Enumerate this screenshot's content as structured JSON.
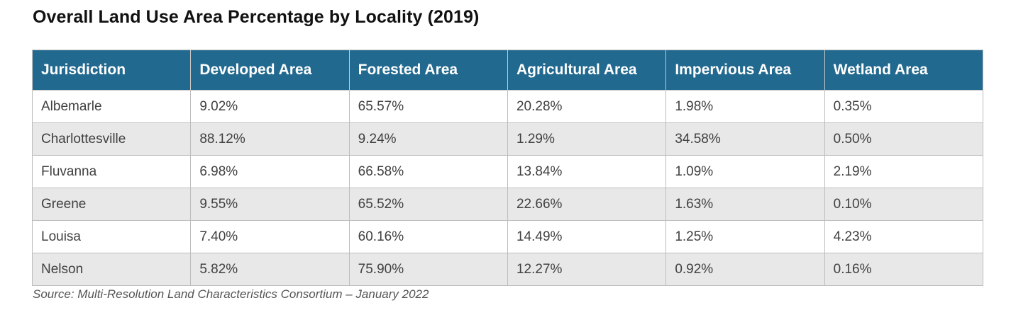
{
  "title": "Overall Land Use Area Percentage by Locality (2019)",
  "table": {
    "headers": [
      "Jurisdiction",
      "Developed Area",
      "Forested Area",
      "Agricultural  Area",
      "Impervious Area",
      "Wetland Area"
    ],
    "rows": [
      [
        "Albemarle",
        "9.02%",
        "65.57%",
        "20.28%",
        "1.98%",
        "0.35%"
      ],
      [
        "Charlottesville",
        "88.12%",
        "9.24%",
        "1.29%",
        "34.58%",
        "0.50%"
      ],
      [
        "Fluvanna",
        "6.98%",
        "66.58%",
        "13.84%",
        "1.09%",
        "2.19%"
      ],
      [
        "Greene",
        "9.55%",
        "65.52%",
        "22.66%",
        "1.63%",
        "0.10%"
      ],
      [
        "Louisa",
        "7.40%",
        "60.16%",
        "14.49%",
        "1.25%",
        "4.23%"
      ],
      [
        "Nelson",
        "5.82%",
        "75.90%",
        "12.27%",
        "0.92%",
        "0.16%"
      ]
    ]
  },
  "source": "Source: Multi-Resolution Land Characteristics Consortium – January 2022",
  "colors": {
    "header_bg": "#22698f",
    "header_text": "#ffffff",
    "row_alt_bg": "#e8e8e9"
  }
}
